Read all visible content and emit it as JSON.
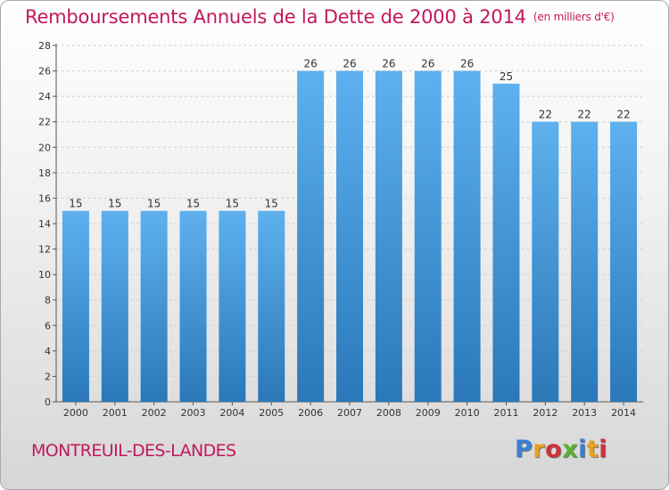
{
  "header": {
    "title": "Remboursements Annuels de la Dette de 2000 à 2014",
    "unit": "(en milliers d'€)"
  },
  "footer": {
    "commune": "MONTREUIL-DES-LANDES",
    "logo_text": "Proxiti",
    "logo_colors": [
      "#3a7fd0",
      "#e8a020",
      "#d0303a",
      "#5ab030",
      "#3a7fd0",
      "#e8a020",
      "#d0303a"
    ]
  },
  "colors": {
    "bar_top": "#5eb0ee",
    "bar_bottom": "#2a78b8",
    "accent": "#c2185b"
  },
  "chart_data": {
    "type": "bar",
    "title": "Remboursements Annuels de la Dette de 2000 à 2014",
    "xlabel": "",
    "ylabel": "",
    "categories": [
      "2000",
      "2001",
      "2002",
      "2003",
      "2004",
      "2005",
      "2006",
      "2007",
      "2008",
      "2009",
      "2010",
      "2011",
      "2012",
      "2013",
      "2014"
    ],
    "values": [
      15,
      15,
      15,
      15,
      15,
      15,
      26,
      26,
      26,
      26,
      26,
      25,
      22,
      22,
      22
    ],
    "ylim": [
      0,
      28
    ],
    "yticks": [
      0,
      2,
      4,
      6,
      8,
      10,
      12,
      14,
      16,
      18,
      20,
      22,
      24,
      26,
      28
    ],
    "grid": true,
    "data_labels": true
  }
}
